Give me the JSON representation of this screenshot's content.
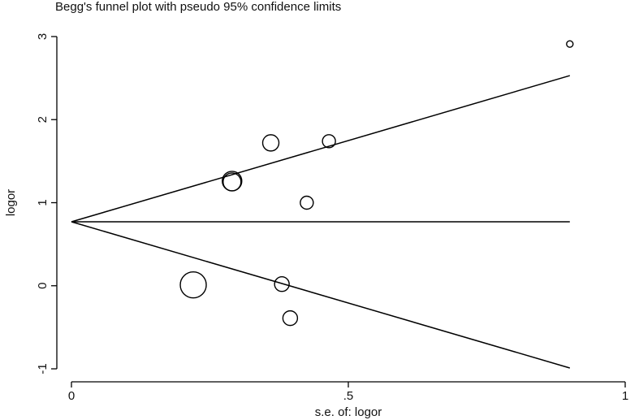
{
  "chart_data": {
    "type": "scatter",
    "title": "Begg's funnel plot with pseudo 95% confidence limits",
    "xlabel": "s.e. of: logor",
    "ylabel": "logor",
    "xlim": [
      0,
      1
    ],
    "ylim": [
      -1,
      3
    ],
    "x_ticks": [
      {
        "value": 0,
        "label": "0"
      },
      {
        "value": 0.5,
        "label": ".5"
      },
      {
        "value": 1,
        "label": "1"
      }
    ],
    "y_ticks": [
      {
        "value": -1,
        "label": "-1"
      },
      {
        "value": 0,
        "label": "0"
      },
      {
        "value": 1,
        "label": "1"
      },
      {
        "value": 2,
        "label": "2"
      },
      {
        "value": 3,
        "label": "3"
      }
    ],
    "grid": false,
    "pooled_estimate": 0.77,
    "lines": {
      "pooled_x": [
        0,
        0.9
      ],
      "pooled_y": [
        0.77,
        0.77
      ],
      "upper_x": [
        0,
        0.9
      ],
      "upper_y": [
        0.77,
        2.53
      ],
      "lower_x": [
        0,
        0.9
      ],
      "lower_y": [
        0.77,
        -0.99
      ]
    },
    "points": [
      {
        "x": 0.9,
        "y": 2.91,
        "size": 4
      },
      {
        "x": 0.36,
        "y": 1.72,
        "size": 10
      },
      {
        "x": 0.465,
        "y": 1.74,
        "size": 8
      },
      {
        "x": 0.29,
        "y": 1.26,
        "size": 12
      },
      {
        "x": 0.29,
        "y": 1.25,
        "size": 11
      },
      {
        "x": 0.425,
        "y": 1.0,
        "size": 8
      },
      {
        "x": 0.22,
        "y": 0.01,
        "size": 16
      },
      {
        "x": 0.38,
        "y": 0.02,
        "size": 9
      },
      {
        "x": 0.395,
        "y": -0.39,
        "size": 9
      }
    ]
  }
}
